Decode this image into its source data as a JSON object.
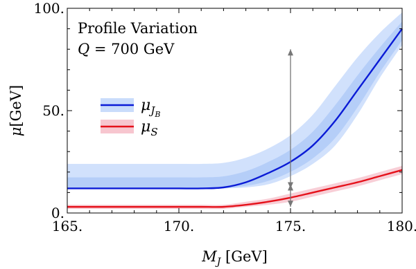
{
  "chart_data": {
    "type": "line",
    "annotations": [
      "Profile Variation",
      "Q = 700 GeV"
    ],
    "xlabel": "M_J [GeV]",
    "ylabel": "μ[GeV]",
    "xlim": [
      165,
      180
    ],
    "ylim": [
      0,
      100
    ],
    "x_ticks": [
      165,
      170,
      175,
      180
    ],
    "x_tick_labels": [
      "165.",
      "170.",
      "175.",
      "180."
    ],
    "y_ticks": [
      0,
      50,
      100
    ],
    "y_tick_labels": [
      "0.",
      "50.",
      "100."
    ],
    "grid": false,
    "legend_position": "center-left",
    "x": [
      165,
      166,
      167,
      168,
      169,
      170,
      171,
      172,
      173,
      174,
      175,
      176,
      177,
      178,
      179,
      180
    ],
    "series": [
      {
        "name": "μ_JB",
        "legend_main": "μ",
        "legend_sub": "J",
        "legend_subsub": "B",
        "color": "#0a1bd6",
        "band_color": "#c9dcfb",
        "inner_band_color": "#a9c6f7",
        "values": [
          12,
          12,
          12,
          12,
          12,
          12,
          12,
          12.5,
          15,
          19.5,
          25,
          33,
          45,
          60,
          75,
          90
        ],
        "band_upper": [
          24,
          24,
          24,
          24,
          24,
          24,
          24,
          24.5,
          27,
          31.5,
          38,
          48,
          62,
          76,
          88,
          98
        ],
        "band_lower": [
          12,
          12,
          12,
          12,
          12,
          12,
          12,
          12,
          12.5,
          14,
          18,
          24,
          33,
          48,
          66,
          82
        ]
      },
      {
        "name": "μ_S",
        "legend_main": "μ",
        "legend_sub": "S",
        "color": "#e5111a",
        "band_color": "#f7c6cf",
        "values": [
          3,
          3,
          3,
          3,
          3,
          3,
          3,
          3,
          4,
          5.5,
          7.5,
          10,
          12.5,
          15,
          18,
          21
        ],
        "band_upper": [
          4,
          4,
          4,
          4,
          4,
          4,
          4,
          4,
          5.5,
          7,
          9.5,
          12,
          14.5,
          17,
          20,
          23
        ],
        "band_lower": [
          2,
          2,
          2,
          2,
          2,
          2,
          2,
          2,
          3,
          4,
          5.5,
          8,
          10.5,
          13,
          16,
          19
        ]
      }
    ],
    "arrows": [
      {
        "x": 175,
        "from": 33,
        "to": 80
      },
      {
        "x": 175,
        "from": 33,
        "to": 12
      },
      {
        "x": 175,
        "from": 7.5,
        "to": 14
      },
      {
        "x": 175,
        "from": 7.5,
        "to": 3
      }
    ]
  }
}
